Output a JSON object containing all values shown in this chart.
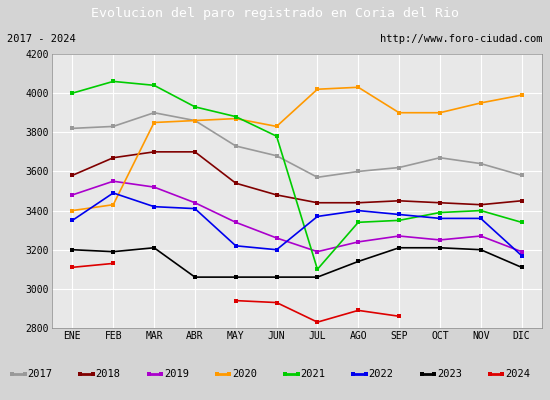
{
  "title": "Evolucion del paro registrado en Coria del Rio",
  "subtitle_left": "2017 - 2024",
  "subtitle_right": "http://www.foro-ciudad.com",
  "months": [
    "ENE",
    "FEB",
    "MAR",
    "ABR",
    "MAY",
    "JUN",
    "JUL",
    "AGO",
    "SEP",
    "OCT",
    "NOV",
    "DIC"
  ],
  "series": {
    "2017": {
      "color": "#999999",
      "data": [
        3820,
        3830,
        3900,
        3860,
        3730,
        3680,
        3570,
        3600,
        3620,
        3670,
        3640,
        3580
      ]
    },
    "2018": {
      "color": "#800000",
      "data": [
        3580,
        3670,
        3700,
        3700,
        3540,
        3480,
        3440,
        3440,
        3450,
        3440,
        3430,
        3450
      ]
    },
    "2019": {
      "color": "#aa00cc",
      "data": [
        3480,
        3550,
        3520,
        3440,
        3340,
        3260,
        3190,
        3240,
        3270,
        3250,
        3270,
        3190
      ]
    },
    "2020": {
      "color": "#ff9900",
      "data": [
        3400,
        3430,
        3850,
        3860,
        3870,
        3830,
        4020,
        4030,
        3900,
        3900,
        3950,
        3990
      ]
    },
    "2021": {
      "color": "#00cc00",
      "data": [
        4000,
        4060,
        4040,
        3930,
        3880,
        3780,
        3100,
        3340,
        3350,
        3390,
        3400,
        3340
      ]
    },
    "2022": {
      "color": "#0000ee",
      "data": [
        3350,
        3490,
        3420,
        3410,
        3220,
        3200,
        3370,
        3400,
        3380,
        3360,
        3360,
        3170
      ]
    },
    "2023": {
      "color": "#000000",
      "data": [
        3200,
        3190,
        3210,
        3060,
        3060,
        3060,
        3060,
        3140,
        3210,
        3210,
        3200,
        3110
      ]
    },
    "2024": {
      "color": "#dd0000",
      "data": [
        3110,
        3130,
        null,
        null,
        2940,
        2930,
        2830,
        2890,
        2860,
        null,
        null,
        null
      ]
    }
  },
  "ylim": [
    2800,
    4200
  ],
  "yticks": [
    2800,
    3000,
    3200,
    3400,
    3600,
    3800,
    4000,
    4200
  ],
  "bg_color": "#d4d4d4",
  "plot_bg_color": "#e8e8e8",
  "title_bg_color": "#4f86c8",
  "title_text_color": "#ffffff",
  "header_bg_color": "#f0f0f0",
  "legend_bg_color": "#f8f8f8"
}
